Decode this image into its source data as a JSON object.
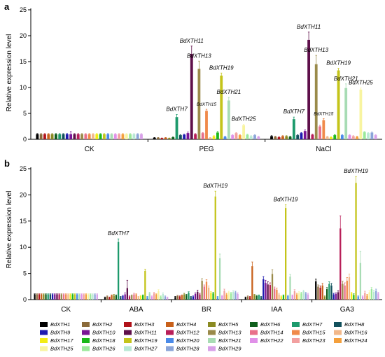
{
  "genes": [
    {
      "name": "BdXTH1",
      "color": "#000000"
    },
    {
      "name": "BdXTH2",
      "color": "#8b6a3a"
    },
    {
      "name": "BdXTH3",
      "color": "#b0121a"
    },
    {
      "name": "BdXTH4",
      "color": "#c8601a"
    },
    {
      "name": "BdXTH5",
      "color": "#8a8a22"
    },
    {
      "name": "BdXTH6",
      "color": "#0f5e1c"
    },
    {
      "name": "BdXTH7",
      "color": "#1d9a6c"
    },
    {
      "name": "BdXTH8",
      "color": "#12505c"
    },
    {
      "name": "BdXTH9",
      "color": "#1d1ab0"
    },
    {
      "name": "BdXTH10",
      "color": "#7a1496"
    },
    {
      "name": "BdXTH11",
      "color": "#5e0f4a"
    },
    {
      "name": "BdXTH12",
      "color": "#b81e58"
    },
    {
      "name": "BdXTH13",
      "color": "#9a8a4a"
    },
    {
      "name": "BdXTH14",
      "color": "#e8708a"
    },
    {
      "name": "BdXTH15",
      "color": "#f08a4a"
    },
    {
      "name": "BdXTH16",
      "color": "#f2b88a"
    },
    {
      "name": "BdXTH17",
      "color": "#f2ec14"
    },
    {
      "name": "BdXTH18",
      "color": "#1ab81a"
    },
    {
      "name": "BdXTH19",
      "color": "#c4c41a"
    },
    {
      "name": "BdXTH20",
      "color": "#4a8ae8"
    },
    {
      "name": "BdXTH21",
      "color": "#a8dcb4"
    },
    {
      "name": "BdXTH22",
      "color": "#e090e8"
    },
    {
      "name": "BdXTH23",
      "color": "#f2a0a0"
    },
    {
      "name": "BdXTH24",
      "color": "#f4a03c"
    },
    {
      "name": "BdXTH25",
      "color": "#f8f4a0"
    },
    {
      "name": "BdXTH26",
      "color": "#9ae89a"
    },
    {
      "name": "BdXTH27",
      "color": "#b8e8d4"
    },
    {
      "name": "BdXTH28",
      "color": "#8aa4d8"
    },
    {
      "name": "BdXTH29",
      "color": "#d8a0e8"
    }
  ],
  "chart_data": [
    {
      "type": "bar",
      "panel": "a",
      "ylabel": "Relative expression level",
      "ylim": [
        0,
        25
      ],
      "yticks": [
        0,
        5,
        10,
        15,
        20,
        25
      ],
      "categories": [
        "CK",
        "PEG",
        "NaCl"
      ],
      "values": [
        [
          1,
          1,
          1,
          1,
          1,
          1,
          1,
          1,
          1,
          1,
          1,
          1,
          1,
          1,
          1,
          1,
          1,
          1,
          1,
          1,
          1,
          1,
          1,
          1,
          1,
          1,
          1,
          1,
          1
        ],
        [
          0.3,
          0.3,
          0.2,
          0.3,
          0.2,
          0.4,
          4.3,
          0.8,
          0.9,
          1.2,
          16.5,
          1.0,
          13.6,
          1.2,
          5.5,
          0.3,
          0.6,
          1.3,
          12.3,
          0.5,
          7.5,
          0.8,
          1.2,
          0.8,
          2.7,
          0.9,
          0.6,
          0.8,
          0.5
        ],
        [
          0.6,
          0.5,
          0.4,
          0.6,
          0.6,
          0.5,
          3.9,
          0.8,
          1.2,
          1.6,
          19.2,
          0.9,
          14.5,
          2.5,
          3.7,
          0.5,
          0.4,
          0.8,
          13.3,
          0.8,
          9.9,
          0.8,
          0.6,
          0.5,
          9.6,
          1.4,
          1.2,
          1.3,
          0.8
        ]
      ],
      "errors": [
        [
          0.1,
          0.1,
          0.1,
          0.1,
          0.1,
          0.1,
          0.1,
          0.1,
          0.1,
          0.5,
          0.1,
          0.1,
          0.1,
          0.1,
          0.1,
          0.1,
          0.1,
          0.1,
          0.1,
          0.1,
          0.1,
          0.1,
          0.1,
          0.1,
          0.1,
          0.1,
          0.1,
          0.1,
          0.1
        ],
        [
          0.05,
          0.05,
          0.05,
          0.05,
          0.05,
          0.05,
          0.5,
          0.1,
          0.1,
          0.2,
          1.5,
          0.1,
          1.5,
          0.1,
          0.3,
          0.05,
          0.1,
          0.2,
          0.5,
          0.1,
          0.6,
          0.1,
          0.1,
          0.1,
          0.2,
          0.1,
          0.1,
          0.1,
          0.1
        ],
        [
          0.1,
          0.1,
          0.1,
          0.1,
          0.1,
          0.1,
          0.4,
          0.1,
          0.1,
          0.2,
          1.5,
          0.1,
          1.7,
          0.2,
          0.3,
          0.1,
          0.1,
          0.1,
          0.4,
          0.1,
          0.8,
          0.1,
          0.1,
          0.1,
          0.3,
          0.1,
          0.1,
          0.1,
          0.1
        ]
      ],
      "annotations": [
        {
          "category": "PEG",
          "gene": "BdXTH7",
          "text": "BdXTH7",
          "size": "large"
        },
        {
          "category": "PEG",
          "gene": "BdXTH11",
          "text": "BdXTH11",
          "size": "large"
        },
        {
          "category": "PEG",
          "gene": "BdXTH13",
          "text": "BdXTH13",
          "size": "large"
        },
        {
          "category": "PEG",
          "gene": "BdXTH15",
          "text": "BdXTH15",
          "size": "small"
        },
        {
          "category": "PEG",
          "gene": "BdXTH19",
          "text": "BdXTH19",
          "size": "large"
        },
        {
          "category": "PEG",
          "gene": "BdXTH21",
          "text": "BdXTH21",
          "size": "large"
        },
        {
          "category": "PEG",
          "gene": "BdXTH25",
          "text": "BdXTH25",
          "size": "large"
        },
        {
          "category": "NaCl",
          "gene": "BdXTH7",
          "text": "BdXTH7",
          "size": "large"
        },
        {
          "category": "NaCl",
          "gene": "BdXTH11",
          "text": "BdXTH11",
          "size": "large"
        },
        {
          "category": "NaCl",
          "gene": "BdXTH13",
          "text": "BdXTH13",
          "size": "large"
        },
        {
          "category": "NaCl",
          "gene": "BdXTH15",
          "text": "BdXTH15",
          "size": "small"
        },
        {
          "category": "NaCl",
          "gene": "BdXTH19",
          "text": "BdXTH19",
          "size": "large"
        },
        {
          "category": "NaCl",
          "gene": "BdXTH21",
          "text": "BdXTH21",
          "size": "large"
        },
        {
          "category": "NaCl",
          "gene": "BdXTH25",
          "text": "BdXTH25",
          "size": "large"
        }
      ]
    },
    {
      "type": "bar",
      "panel": "b",
      "ylabel": "Relative expression level",
      "ylim": [
        0,
        25
      ],
      "yticks": [
        0,
        5,
        10,
        15,
        20,
        25
      ],
      "categories": [
        "CK",
        "ABA",
        "BR",
        "IAA",
        "GA3"
      ],
      "values": [
        [
          1,
          1,
          1,
          1,
          1,
          1,
          1,
          1,
          1,
          1,
          1,
          1,
          1,
          1,
          1,
          1,
          1,
          1,
          1,
          1,
          1,
          1,
          1,
          1,
          1,
          1,
          1,
          1,
          1
        ],
        [
          0.4,
          0.6,
          0.4,
          0.8,
          0.8,
          0.8,
          11.0,
          0.5,
          0.7,
          1.0,
          2.2,
          0.6,
          0.8,
          1.0,
          1.0,
          0.5,
          0.7,
          0.8,
          5.5,
          0.5,
          1.2,
          0.6,
          1.2,
          1.0,
          1.6,
          0.6,
          1.1,
          0.6,
          0.4
        ],
        [
          0.5,
          0.7,
          0.6,
          0.8,
          1.0,
          0.9,
          1.3,
          0.5,
          0.6,
          1.1,
          1.5,
          1.0,
          3.6,
          2.5,
          3.4,
          2.3,
          1.3,
          1.2,
          19.7,
          0.5,
          7.9,
          0.7,
          1.7,
          1.0,
          1.4,
          1.2,
          1.5,
          1.4,
          1.1
        ],
        [
          0.4,
          0.6,
          0.5,
          6.4,
          0.9,
          0.7,
          0.8,
          0.5,
          3.9,
          3.2,
          2.9,
          2.8,
          4.9,
          2.1,
          1.9,
          1.0,
          0.6,
          0.8,
          17.5,
          0.7,
          4.4,
          0.8,
          1.6,
          1.0,
          1.3,
          1.2,
          1.6,
          1.2,
          1.0
        ],
        [
          3.5,
          2.5,
          2.3,
          2.7,
          0.6,
          2.0,
          3.0,
          2.7,
          1.0,
          1.1,
          1.4,
          13.6,
          3.0,
          2.7,
          3.6,
          4.3,
          1.2,
          0.9,
          22.3,
          0.6,
          7.0,
          0.6,
          1.3,
          0.8,
          1.4,
          2.0,
          1.5,
          1.7,
          1.2
        ]
      ],
      "errors": [
        [
          0.1,
          0.1,
          0.1,
          0.1,
          0.1,
          0.1,
          0.1,
          0.1,
          0.1,
          0.1,
          0.1,
          0.1,
          0.1,
          0.1,
          0.1,
          0.1,
          0.1,
          0.1,
          0.1,
          0.1,
          0.1,
          0.1,
          0.1,
          0.1,
          0.1,
          0.1,
          0.1,
          0.1,
          0.1
        ],
        [
          0.1,
          0.1,
          0.1,
          0.1,
          0.2,
          0.1,
          0.6,
          0.1,
          0.1,
          0.3,
          1.5,
          0.1,
          0.1,
          0.2,
          0.1,
          0.1,
          0.1,
          0.1,
          0.3,
          0.1,
          0.2,
          0.1,
          0.2,
          0.1,
          0.3,
          0.1,
          0.2,
          0.1,
          0.1
        ],
        [
          0.1,
          0.1,
          0.1,
          0.1,
          0.2,
          0.1,
          0.2,
          0.1,
          0.1,
          0.2,
          0.3,
          0.2,
          0.4,
          0.3,
          0.4,
          0.3,
          0.2,
          0.2,
          1.0,
          0.1,
          0.8,
          0.1,
          0.3,
          0.2,
          0.2,
          0.2,
          0.2,
          0.2,
          0.2
        ],
        [
          0.1,
          0.1,
          0.1,
          0.8,
          0.1,
          0.1,
          0.1,
          0.1,
          0.5,
          0.5,
          0.5,
          0.4,
          0.8,
          0.3,
          0.3,
          0.2,
          0.1,
          0.1,
          0.6,
          0.1,
          0.4,
          0.1,
          0.3,
          0.2,
          0.2,
          0.2,
          0.2,
          0.2,
          0.2
        ],
        [
          0.4,
          0.3,
          0.3,
          0.4,
          0.1,
          0.3,
          0.4,
          0.4,
          0.2,
          0.2,
          0.3,
          2.4,
          0.5,
          0.5,
          0.6,
          0.6,
          0.2,
          0.2,
          1.2,
          0.1,
          2.2,
          0.1,
          0.3,
          0.2,
          0.3,
          0.3,
          0.3,
          0.3,
          0.2
        ]
      ],
      "annotations": [
        {
          "category": "ABA",
          "gene": "BdXTH7",
          "text": "BdXTH7",
          "size": "large"
        },
        {
          "category": "BR",
          "gene": "BdXTH19",
          "text": "BdXTH19",
          "size": "large"
        },
        {
          "category": "IAA",
          "gene": "BdXTH19",
          "text": "BdXTH19",
          "size": "large"
        },
        {
          "category": "GA3",
          "gene": "BdXTH19",
          "text": "BdXTH19",
          "size": "large"
        }
      ]
    }
  ]
}
